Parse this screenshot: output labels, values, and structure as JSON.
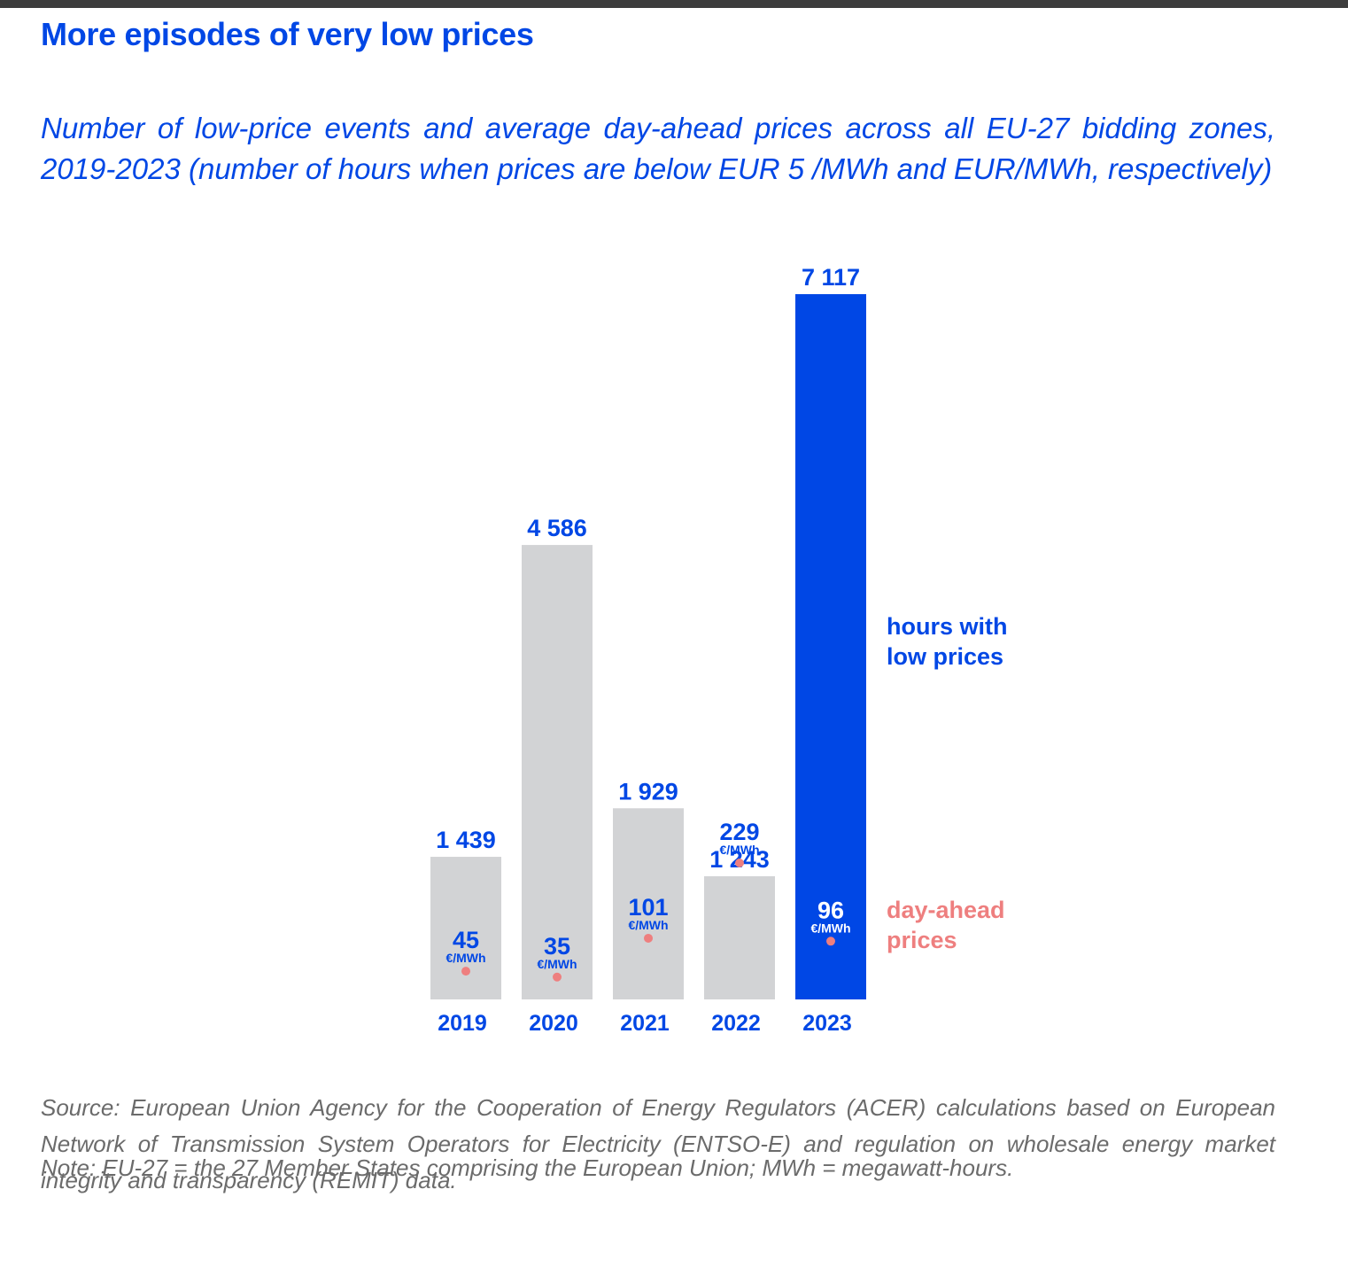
{
  "title": "More episodes of very low prices",
  "subtitle": "Number of low-price events and average day-ahead prices across all EU-27 bidding zones, 2019-2023 (number of hours when prices are below EUR 5 /MWh and EUR/MWh, respectively)",
  "chart_data": {
    "type": "bar",
    "categories": [
      "2019",
      "2020",
      "2021",
      "2022",
      "2023"
    ],
    "series": [
      {
        "name": "hours with low prices",
        "values": [
          1439,
          4586,
          1929,
          1243,
          7117
        ],
        "labels": [
          "1 439",
          "4 586",
          "1 929",
          "1 243",
          "7 117"
        ]
      },
      {
        "name": "day-ahead prices",
        "values": [
          45,
          35,
          101,
          229,
          96
        ],
        "unit": "€/MWh"
      }
    ],
    "highlight_category": "2023",
    "legend": [
      "hours with\nlow prices",
      "day-ahead\nprices"
    ],
    "colors": {
      "bar": "#d2d3d5",
      "bar_highlight": "#0047e5",
      "text": "#0047e5",
      "price_dot": "#ee7f7f"
    }
  },
  "legend": {
    "hours_line1": "hours with",
    "hours_line2": "low prices",
    "prices_line1": "day-ahead",
    "prices_line2": "prices"
  },
  "footer": {
    "source": "Source: European Union Agency for the Cooperation of Energy Regulators (ACER) calculations based on European Network of Transmission System Operators for Electricity (ENTSO-E) and regulation on wholesale energy market integrity and transparency (REMIT) data.",
    "note": "Note: EU-27 = the 27 Member States comprising the European Union; MWh = megawatt-hours."
  }
}
